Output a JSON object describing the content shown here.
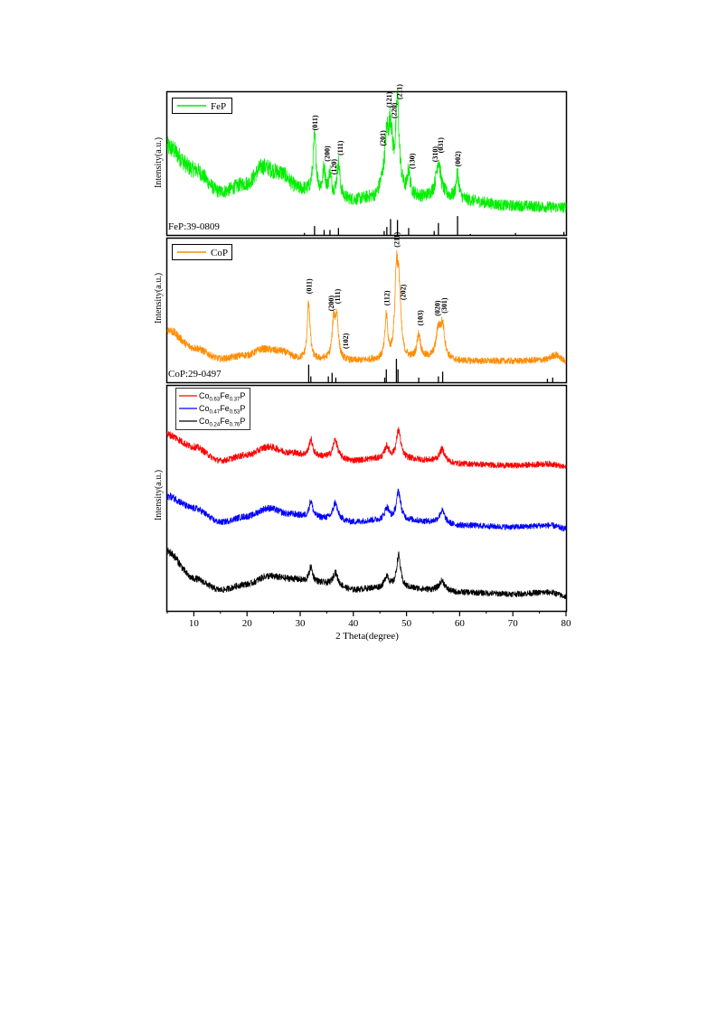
{
  "chart_data": [
    {
      "type": "line",
      "panel": "FeP",
      "legend": [
        "FeP"
      ],
      "legend_placement": "top-left",
      "ylabel": "Intensity(a.u.)",
      "xlim": [
        5,
        80
      ],
      "reference_label": "FeP:39-0809",
      "color": "#00ee00",
      "series": [
        {
          "name": "FeP",
          "baseline": [
            [
              5,
              120
            ],
            [
              10,
              80
            ],
            [
              15,
              40
            ],
            [
              20,
              55
            ],
            [
              23,
              85
            ],
            [
              26,
              75
            ],
            [
              30,
              45
            ],
            [
              32,
              40
            ],
            [
              36,
              30
            ],
            [
              40,
              25
            ],
            [
              44,
              30
            ],
            [
              46,
              60
            ],
            [
              48,
              60
            ],
            [
              50,
              35
            ],
            [
              53,
              30
            ],
            [
              56,
              35
            ],
            [
              60,
              25
            ],
            [
              70,
              15
            ],
            [
              80,
              12
            ]
          ],
          "peaks": [
            [
              32.7,
              95,
              0.35
            ],
            [
              34.5,
              45,
              0.3
            ],
            [
              35.6,
              40,
              0.3
            ],
            [
              37.2,
              60,
              0.35
            ],
            [
              46.3,
              70,
              0.4
            ],
            [
              47.0,
              90,
              0.4
            ],
            [
              48.3,
              140,
              0.35
            ],
            [
              50.4,
              40,
              0.3
            ],
            [
              56.0,
              60,
              0.5
            ],
            [
              59.6,
              45,
              0.35
            ]
          ]
        }
      ],
      "peak_labels": [
        {
          "text": "(011)",
          "x": 32.7
        },
        {
          "text": "(200)",
          "x": 35.0
        },
        {
          "text": "(120)",
          "x": 36.3
        },
        {
          "text": "(111)",
          "x": 37.5
        },
        {
          "text": "(201)",
          "x": 45.5
        },
        {
          "text": "(121)",
          "x": 46.7
        },
        {
          "text": "(220)",
          "x": 47.6
        },
        {
          "text": "(211)",
          "x": 48.6
        },
        {
          "text": "(130)",
          "x": 51.0
        },
        {
          "text": "(310)",
          "x": 55.3
        },
        {
          "text": "(031)",
          "x": 56.4
        },
        {
          "text": "(002)",
          "x": 59.6
        }
      ],
      "reference_lines": [
        [
          30.8,
          0.1
        ],
        [
          32.7,
          0.45
        ],
        [
          34.5,
          0.25
        ],
        [
          35.6,
          0.25
        ],
        [
          37.2,
          0.35
        ],
        [
          45.8,
          0.2
        ],
        [
          46.3,
          0.4
        ],
        [
          47.0,
          0.8
        ],
        [
          48.3,
          0.75
        ],
        [
          50.4,
          0.35
        ],
        [
          55.2,
          0.2
        ],
        [
          56.0,
          0.6
        ],
        [
          59.6,
          0.95
        ],
        [
          62.0,
          0.05
        ],
        [
          70.5,
          0.1
        ],
        [
          79.6,
          0.15
        ]
      ]
    },
    {
      "type": "line",
      "panel": "CoP",
      "legend": [
        "CoP"
      ],
      "legend_placement": "top-left",
      "ylabel": "Intensity(a.u.)",
      "xlim": [
        5,
        80
      ],
      "reference_label": "CoP:29-0497",
      "color": "#ff8c00",
      "series": [
        {
          "name": "CoP",
          "baseline": [
            [
              5,
              60
            ],
            [
              10,
              30
            ],
            [
              15,
              12
            ],
            [
              20,
              18
            ],
            [
              23,
              28
            ],
            [
              26,
              25
            ],
            [
              30,
              12
            ],
            [
              34,
              10
            ],
            [
              40,
              8
            ],
            [
              45,
              10
            ],
            [
              50,
              10
            ],
            [
              55,
              12
            ],
            [
              60,
              8
            ],
            [
              70,
              8
            ],
            [
              76,
              10
            ],
            [
              78,
              18
            ],
            [
              80,
              8
            ]
          ],
          "peaks": [
            [
              31.6,
              95,
              0.3
            ],
            [
              36.3,
              60,
              0.35
            ],
            [
              36.9,
              65,
              0.35
            ],
            [
              46.2,
              70,
              0.3
            ],
            [
              48.1,
              130,
              0.35
            ],
            [
              48.6,
              100,
              0.4
            ],
            [
              52.3,
              40,
              0.4
            ],
            [
              56.0,
              45,
              0.5
            ],
            [
              56.8,
              50,
              0.45
            ]
          ]
        }
      ],
      "peak_labels": [
        {
          "text": "(011)",
          "x": 31.6
        },
        {
          "text": "(200)",
          "x": 35.8
        },
        {
          "text": "(111)",
          "x": 37.0
        },
        {
          "text": "(102)",
          "x": 38.5
        },
        {
          "text": "(112)",
          "x": 46.2
        },
        {
          "text": "(211)",
          "x": 48.1
        },
        {
          "text": "(202)",
          "x": 49.3
        },
        {
          "text": "(103)",
          "x": 52.5
        },
        {
          "text": "(020)",
          "x": 55.8
        },
        {
          "text": "(301)",
          "x": 57.0
        }
      ],
      "reference_lines": [
        [
          31.6,
          0.75
        ],
        [
          32.0,
          0.25
        ],
        [
          35.3,
          0.25
        ],
        [
          36.0,
          0.4
        ],
        [
          36.7,
          0.2
        ],
        [
          45.9,
          0.2
        ],
        [
          46.2,
          0.55
        ],
        [
          48.1,
          1.0
        ],
        [
          48.4,
          0.55
        ],
        [
          52.3,
          0.2
        ],
        [
          56.0,
          0.25
        ],
        [
          56.8,
          0.45
        ],
        [
          76.5,
          0.15
        ],
        [
          77.5,
          0.2
        ]
      ]
    },
    {
      "type": "line",
      "panel": "CoFeP",
      "xlabel": "2 Theta(degree)",
      "ylabel": "Intensity(a.u.)",
      "xlim": [
        5,
        80
      ],
      "xticks": [
        10,
        20,
        30,
        40,
        50,
        60,
        70,
        80
      ],
      "legend_placement": "top-left",
      "series": [
        {
          "legend": {
            "base": "Co",
            "sub1": "0.63",
            "mid": "Fe",
            "sub2": "0.37",
            "end": "P"
          },
          "color": "#ff0000",
          "baseline": [
            [
              5,
              40
            ],
            [
              10,
              25
            ],
            [
              15,
              8
            ],
            [
              20,
              15
            ],
            [
              24,
              25
            ],
            [
              28,
              18
            ],
            [
              32,
              14
            ],
            [
              36,
              12
            ],
            [
              40,
              8
            ],
            [
              44,
              10
            ],
            [
              50,
              10
            ],
            [
              55,
              8
            ],
            [
              60,
              4
            ],
            [
              70,
              2
            ],
            [
              77,
              4
            ],
            [
              80,
              0
            ]
          ],
          "peaks": [
            [
              32.0,
              20,
              0.4
            ],
            [
              36.6,
              22,
              0.5
            ],
            [
              46.3,
              15,
              0.5
            ],
            [
              48.5,
              35,
              0.5
            ],
            [
              56.7,
              15,
              0.6
            ]
          ]
        },
        {
          "legend": {
            "base": "Co",
            "sub1": "0.47",
            "mid": "Fe",
            "sub2": "0.53",
            "end": "P"
          },
          "color": "#0000ff",
          "baseline": [
            [
              5,
              40
            ],
            [
              10,
              25
            ],
            [
              15,
              8
            ],
            [
              20,
              15
            ],
            [
              24,
              25
            ],
            [
              28,
              18
            ],
            [
              32,
              14
            ],
            [
              36,
              12
            ],
            [
              40,
              8
            ],
            [
              44,
              10
            ],
            [
              50,
              10
            ],
            [
              55,
              8
            ],
            [
              60,
              4
            ],
            [
              70,
              2
            ],
            [
              77,
              4
            ],
            [
              80,
              0
            ]
          ],
          "peaks": [
            [
              32.0,
              20,
              0.4
            ],
            [
              36.6,
              20,
              0.5
            ],
            [
              46.3,
              15,
              0.5
            ],
            [
              48.5,
              35,
              0.5
            ],
            [
              56.7,
              15,
              0.6
            ]
          ]
        },
        {
          "legend": {
            "base": "Co",
            "sub1": "0.24",
            "mid": "Fe",
            "sub2": "0.76",
            "end": "P"
          },
          "color": "#000000",
          "baseline": [
            [
              5,
              55
            ],
            [
              10,
              22
            ],
            [
              15,
              8
            ],
            [
              20,
              15
            ],
            [
              24,
              25
            ],
            [
              28,
              22
            ],
            [
              32,
              18
            ],
            [
              36,
              15
            ],
            [
              40,
              8
            ],
            [
              44,
              10
            ],
            [
              50,
              10
            ],
            [
              55,
              8
            ],
            [
              60,
              5
            ],
            [
              70,
              3
            ],
            [
              77,
              5
            ],
            [
              80,
              0
            ]
          ],
          "peaks": [
            [
              32.0,
              18,
              0.4
            ],
            [
              36.6,
              15,
              0.5
            ],
            [
              46.3,
              15,
              0.5
            ],
            [
              48.5,
              40,
              0.45
            ],
            [
              56.7,
              12,
              0.6
            ]
          ]
        }
      ]
    }
  ]
}
